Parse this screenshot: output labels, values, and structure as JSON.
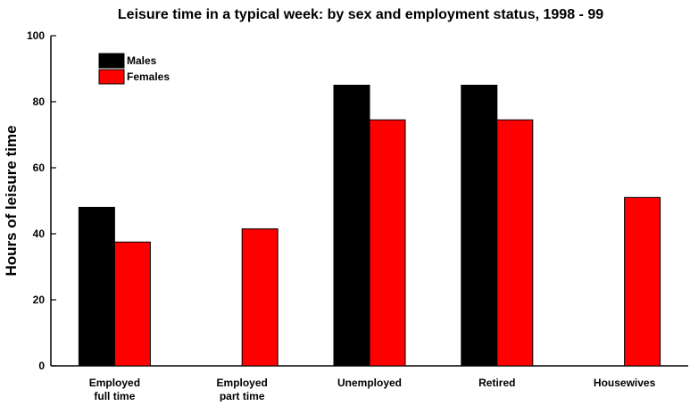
{
  "chart_data": {
    "type": "bar",
    "title": "Leisure time in a typical week: by sex and employment status, 1998 - 99",
    "xlabel": "",
    "ylabel": "Hours of leisure time",
    "ylim": [
      0,
      100
    ],
    "yticks": [
      0,
      20,
      40,
      60,
      80,
      100
    ],
    "categories": [
      [
        "Employed",
        "full time"
      ],
      [
        "Employed",
        "part time"
      ],
      [
        "Unemployed"
      ],
      [
        "Retired"
      ],
      [
        "Housewives"
      ]
    ],
    "series": [
      {
        "name": "Males",
        "color": "#000000",
        "values": [
          48,
          null,
          85,
          85,
          null
        ]
      },
      {
        "name": "Females",
        "color": "#ff0000",
        "values": [
          37.5,
          41.5,
          74.5,
          74.5,
          51
        ]
      }
    ],
    "legend": "top-left",
    "grid": false
  }
}
